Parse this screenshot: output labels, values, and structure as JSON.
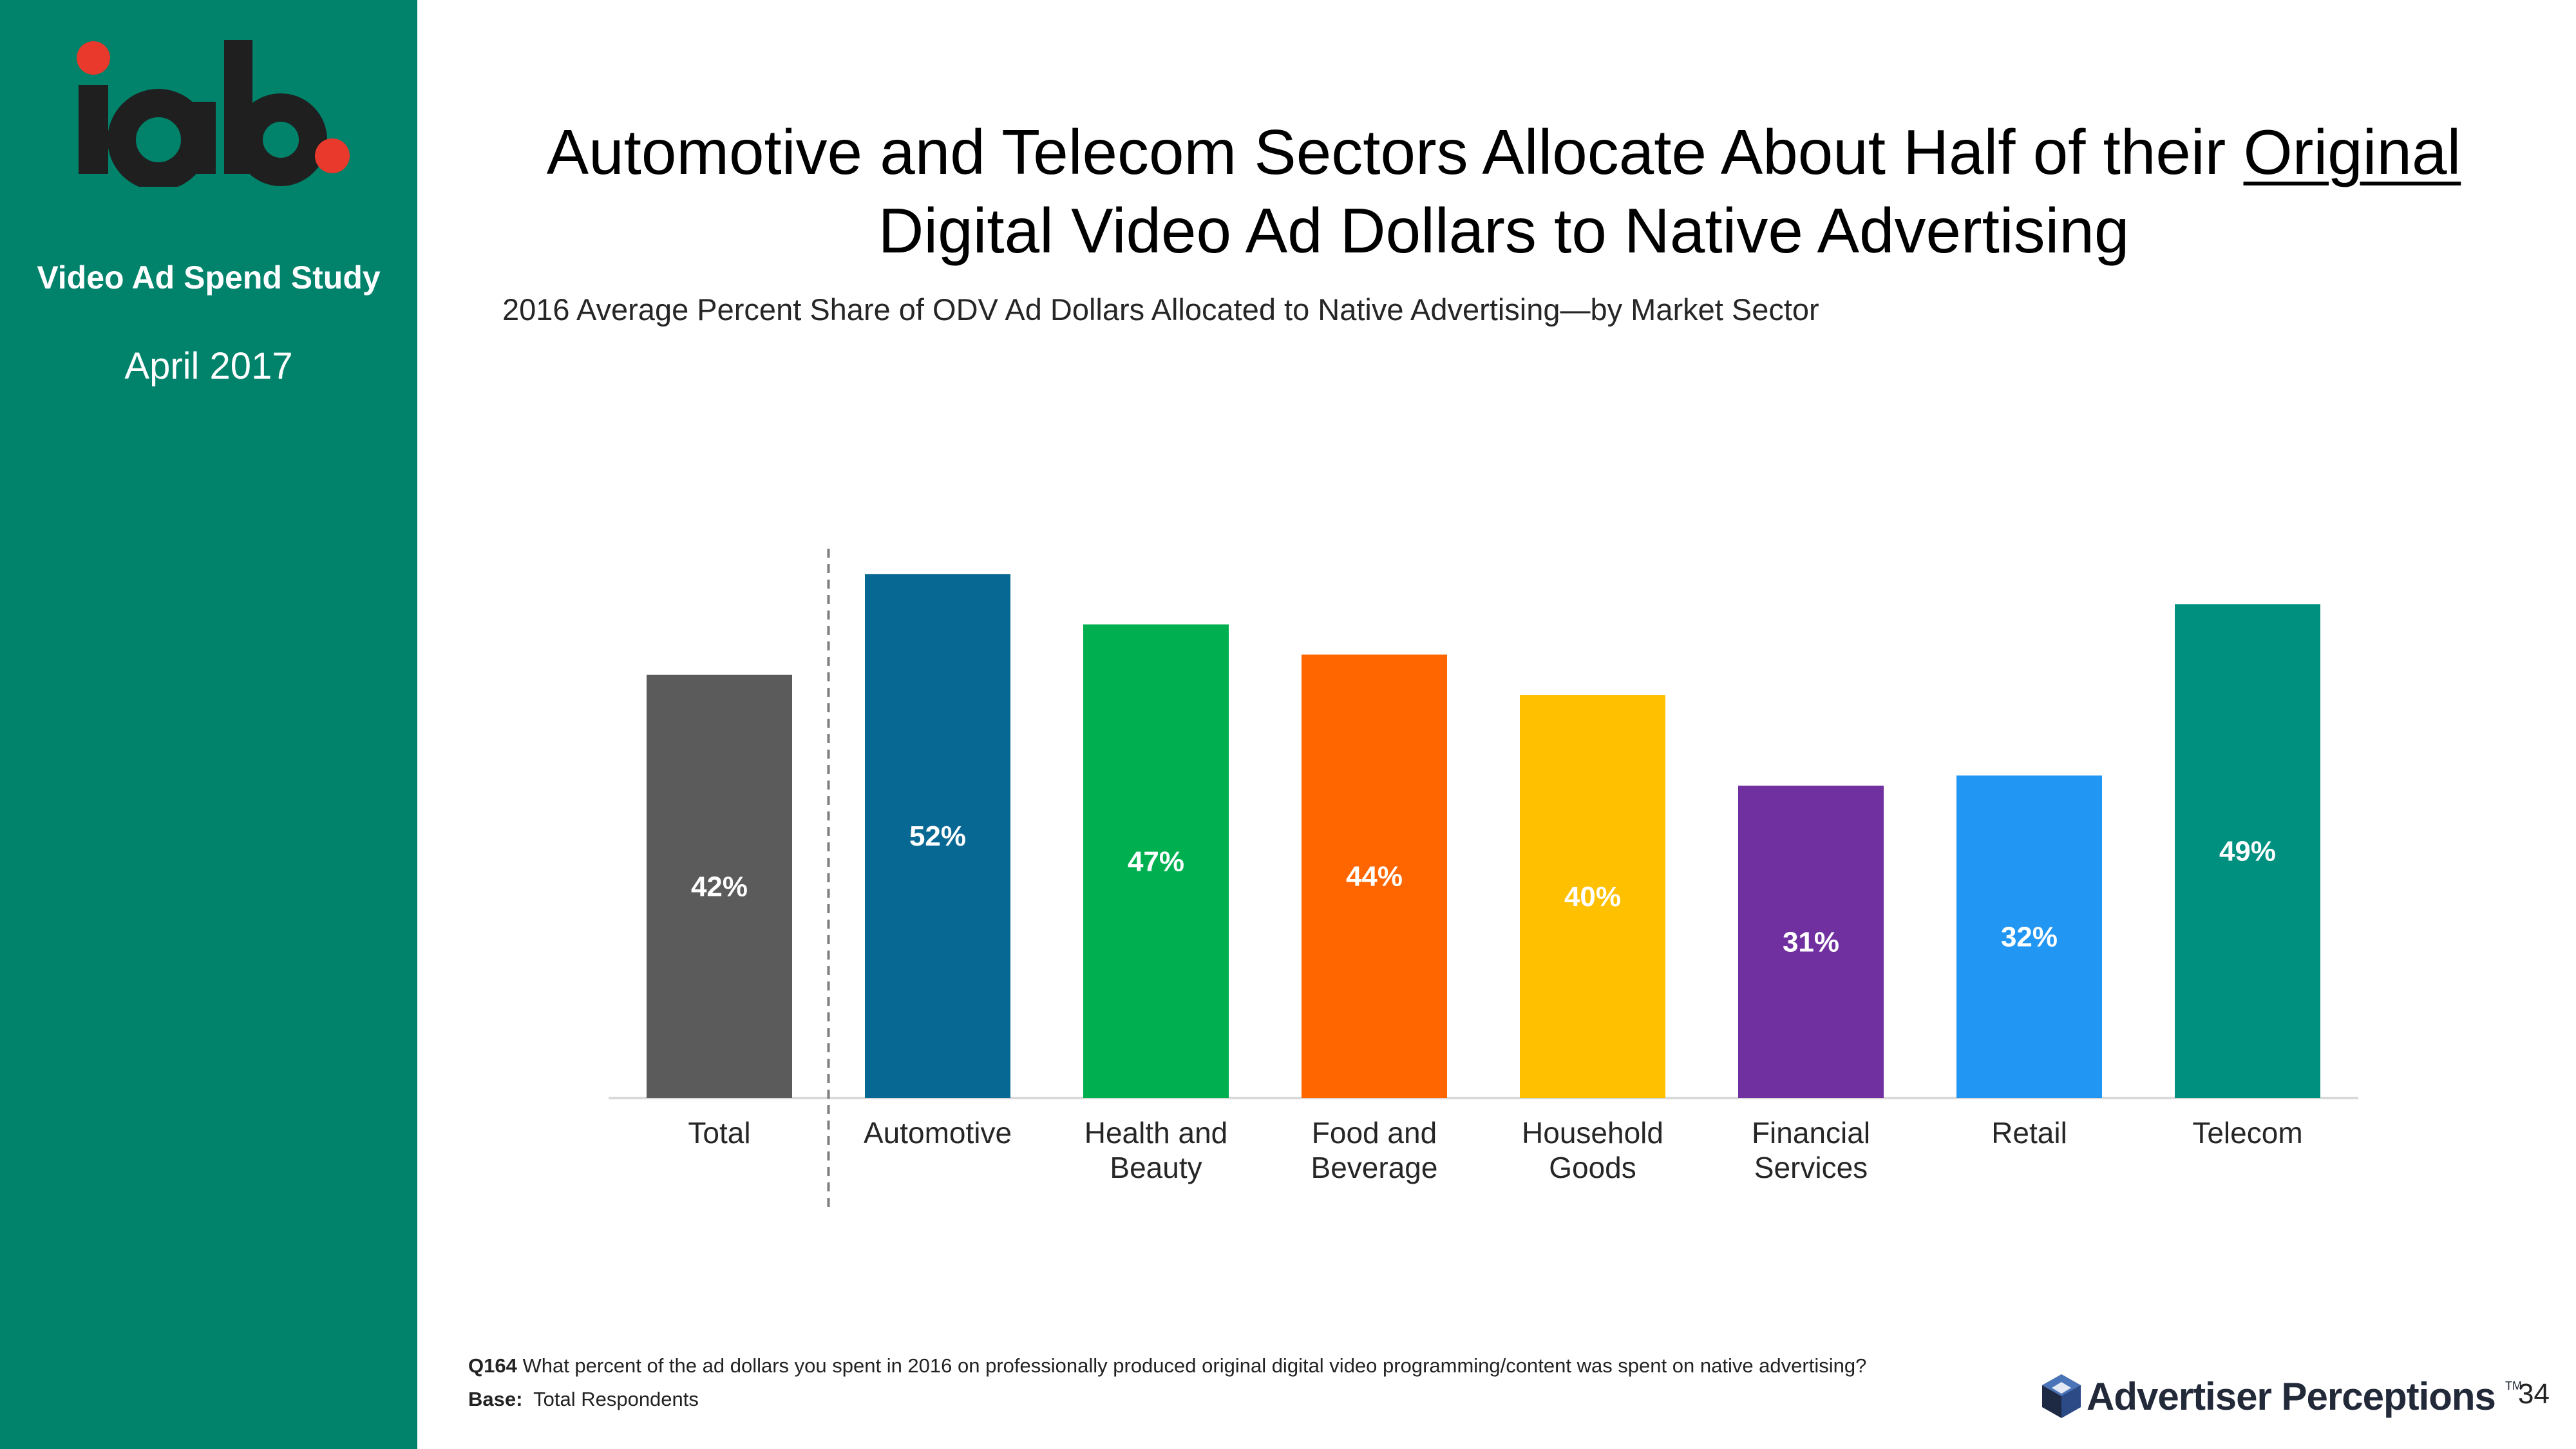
{
  "sidebar": {
    "logo_text": "iab",
    "study_title": "Video Ad Spend Study",
    "study_date": "April 2017",
    "background_color": "#00826B"
  },
  "title": {
    "line1_prefix": "Automotive and Telecom Sectors Allocate About Half of their ",
    "line1_underlined": "Original",
    "line2": "Digital Video Ad Dollars to Native Advertising"
  },
  "chart_subtitle": "2016 Average Percent Share of ODV Ad Dollars Allocated to Native Advertising—by Market Sector",
  "chart_data": {
    "type": "bar",
    "categories": [
      "Total",
      "Automotive",
      "Health and Beauty",
      "Food and Beverage",
      "Household Goods",
      "Financial Services",
      "Retail",
      "Telecom"
    ],
    "category_lines": [
      [
        "Total"
      ],
      [
        "Automotive"
      ],
      [
        "Health and",
        "Beauty"
      ],
      [
        "Food and",
        "Beverage"
      ],
      [
        "Household",
        "Goods"
      ],
      [
        "Financial",
        "Services"
      ],
      [
        "Retail"
      ],
      [
        "Telecom"
      ]
    ],
    "values": [
      42,
      52,
      47,
      44,
      40,
      31,
      32,
      49
    ],
    "value_labels": [
      "42%",
      "52%",
      "47%",
      "44%",
      "40%",
      "31%",
      "32%",
      "49%"
    ],
    "colors": [
      "#5B5B5B",
      "#086894",
      "#00B050",
      "#FF6600",
      "#FFC000",
      "#7030A0",
      "#2196F3",
      "#009080"
    ],
    "ylim": [
      0,
      54
    ],
    "grid": false,
    "separator_after": "Total"
  },
  "footnote": {
    "q_label": "Q164",
    "q_text": "What percent of the ad dollars you spent in 2016 on professionally produced original digital video programming/content was spent on native advertising?",
    "base_label": "Base:",
    "base_text": "Total Respondents"
  },
  "brand": {
    "name": "Advertiser Perceptions",
    "tm": "TM"
  },
  "page_number": "34"
}
